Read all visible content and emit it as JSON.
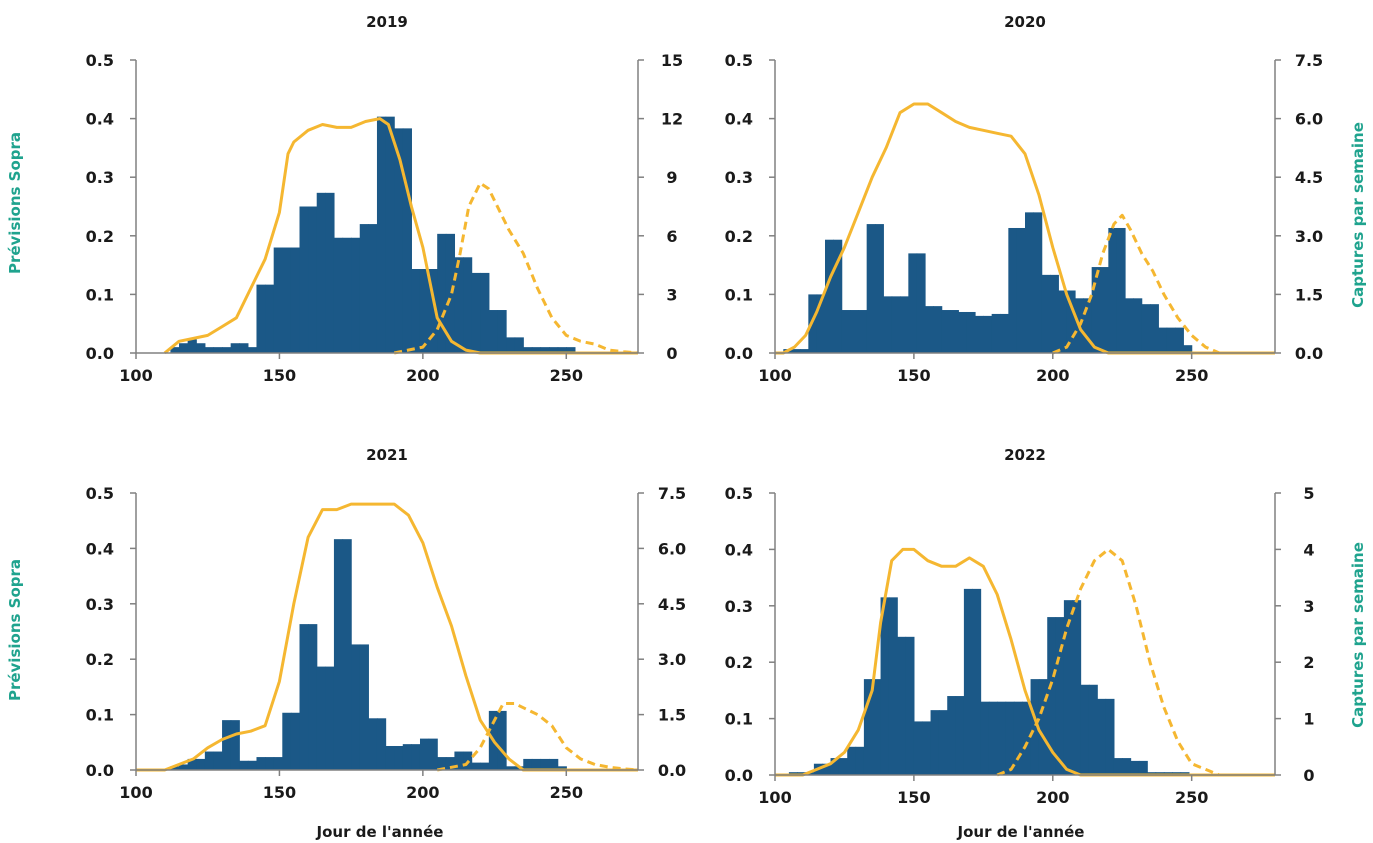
{
  "colors": {
    "bars": "#1b5887",
    "forecast": "#f5b731",
    "frame": "#808080",
    "ylabel": "#1fa38e",
    "text": "#1a1a1a"
  },
  "labels": {
    "ylabel_left": "Prévisions Sopra",
    "ylabel_right": "Captures par semaine",
    "xlabel": "Jour de l'année"
  },
  "chart_data": [
    {
      "type": "bar",
      "title": "2019",
      "xlim": [
        100,
        275
      ],
      "xticks": [
        "100",
        "150",
        "200",
        "250"
      ],
      "ylim_left": [
        0,
        0.5
      ],
      "yticks_left": [
        "0.0",
        "0.1",
        "0.2",
        "0.3",
        "0.4",
        "0.5"
      ],
      "ylim_right": [
        0,
        15
      ],
      "yticks_right": [
        "0",
        "3",
        "6",
        "9",
        "12",
        "15"
      ],
      "captures": {
        "name": "Captures par semaine",
        "x": [
          112,
          115,
          118,
          121,
          124,
          127,
          130,
          133,
          136,
          139,
          142,
          145,
          148,
          151,
          154,
          157,
          160,
          163,
          166,
          169,
          172,
          175,
          178,
          181,
          184,
          187,
          190,
          193,
          196,
          199,
          202,
          205,
          208,
          211,
          214,
          217,
          220,
          223,
          226,
          229,
          232,
          235,
          238,
          241,
          244,
          247,
          250
        ],
        "values": [
          0.3,
          0.5,
          0.7,
          0.5,
          0.3,
          0.3,
          0.3,
          0.5,
          0.5,
          0.3,
          3.5,
          3.5,
          5.4,
          5.4,
          5.4,
          7.5,
          7.5,
          8.2,
          8.2,
          5.9,
          5.9,
          5.9,
          6.6,
          6.6,
          12.1,
          12.1,
          11.5,
          11.5,
          4.3,
          4.3,
          4.3,
          6.1,
          6.1,
          4.9,
          4.9,
          4.1,
          4.1,
          2.2,
          2.2,
          0.8,
          0.8,
          0.3,
          0.3,
          0.3,
          0.3,
          0.3,
          0.3
        ]
      },
      "forecast_solid": {
        "name": "Prévisions Sopra",
        "x": [
          110,
          115,
          120,
          125,
          130,
          135,
          140,
          145,
          150,
          153,
          155,
          160,
          165,
          170,
          175,
          180,
          185,
          188,
          192,
          196,
          200,
          205,
          210,
          215,
          220,
          275
        ],
        "values": [
          0,
          0.02,
          0.025,
          0.03,
          0.045,
          0.06,
          0.11,
          0.16,
          0.24,
          0.34,
          0.36,
          0.38,
          0.39,
          0.385,
          0.385,
          0.395,
          0.4,
          0.39,
          0.33,
          0.25,
          0.18,
          0.06,
          0.02,
          0.005,
          0,
          0
        ]
      },
      "forecast_dashed": {
        "name": "Prévisions Sopra",
        "x": [
          190,
          200,
          205,
          210,
          213,
          216,
          220,
          223,
          227,
          230,
          235,
          240,
          245,
          250,
          255,
          260,
          265,
          270,
          275
        ],
        "values": [
          0,
          0.01,
          0.04,
          0.1,
          0.17,
          0.25,
          0.29,
          0.28,
          0.24,
          0.21,
          0.17,
          0.11,
          0.06,
          0.03,
          0.02,
          0.015,
          0.005,
          0.002,
          0
        ]
      }
    },
    {
      "type": "bar",
      "title": "2020",
      "xlim": [
        100,
        280
      ],
      "xticks": [
        "100",
        "150",
        "200",
        "250"
      ],
      "ylim_left": [
        0,
        0.5
      ],
      "yticks_left": [
        "0.0",
        "0.1",
        "0.2",
        "0.3",
        "0.4",
        "0.5"
      ],
      "ylim_right": [
        0,
        7.5
      ],
      "yticks_right": [
        "0.0",
        "1.5",
        "3.0",
        "4.5",
        "6.0",
        "7.5"
      ],
      "captures": {
        "name": "Captures par semaine",
        "x": [
          103,
          106,
          109,
          112,
          115,
          118,
          121,
          124,
          127,
          130,
          133,
          136,
          139,
          142,
          145,
          148,
          151,
          154,
          157,
          160,
          163,
          166,
          169,
          172,
          175,
          178,
          181,
          184,
          187,
          190,
          193,
          196,
          199,
          202,
          205,
          208,
          211,
          214,
          217,
          220,
          223,
          226,
          229,
          232,
          235,
          238,
          241,
          244,
          247
        ],
        "values": [
          0.1,
          0.1,
          0.1,
          1.5,
          1.5,
          2.9,
          2.9,
          1.1,
          1.1,
          1.1,
          3.3,
          3.3,
          1.45,
          1.45,
          1.45,
          2.55,
          2.55,
          1.2,
          1.2,
          1.1,
          1.1,
          1.05,
          1.05,
          0.95,
          0.95,
          1.0,
          1.0,
          3.2,
          3.2,
          3.6,
          3.6,
          2.0,
          2.0,
          1.6,
          1.6,
          1.4,
          1.4,
          2.2,
          2.2,
          3.2,
          3.2,
          1.4,
          1.4,
          1.25,
          1.25,
          0.65,
          0.65,
          0.65,
          0.2
        ]
      },
      "forecast_solid": {
        "name": "Prévisions Sopra",
        "x": [
          100,
          103,
          107,
          111,
          115,
          120,
          125,
          130,
          135,
          140,
          145,
          150,
          155,
          160,
          165,
          170,
          175,
          180,
          185,
          190,
          195,
          200,
          205,
          210,
          215,
          220,
          280
        ],
        "values": [
          0,
          0,
          0.01,
          0.03,
          0.07,
          0.13,
          0.18,
          0.24,
          0.3,
          0.35,
          0.41,
          0.425,
          0.425,
          0.41,
          0.395,
          0.385,
          0.38,
          0.375,
          0.37,
          0.34,
          0.27,
          0.18,
          0.1,
          0.04,
          0.01,
          0,
          0
        ]
      },
      "forecast_dashed": {
        "name": "Prévisions Sopra",
        "x": [
          200,
          205,
          210,
          214,
          218,
          222,
          225,
          228,
          232,
          236,
          240,
          245,
          250,
          255,
          260,
          280
        ],
        "values": [
          0,
          0.01,
          0.05,
          0.1,
          0.17,
          0.22,
          0.235,
          0.21,
          0.17,
          0.14,
          0.1,
          0.06,
          0.03,
          0.01,
          0,
          0
        ]
      }
    },
    {
      "type": "bar",
      "title": "2021",
      "xlim": [
        100,
        275
      ],
      "xticks": [
        "100",
        "150",
        "200",
        "250"
      ],
      "ylim_left": [
        0,
        0.5
      ],
      "yticks_left": [
        "0.0",
        "0.1",
        "0.2",
        "0.3",
        "0.4",
        "0.5"
      ],
      "ylim_right": [
        0,
        7.5
      ],
      "yticks_right": [
        "0.0",
        "1.5",
        "3.0",
        "4.5",
        "6.0",
        "7.5"
      ],
      "captures": {
        "name": "Captures par semaine",
        "x": [
          112,
          115,
          118,
          121,
          124,
          127,
          130,
          133,
          136,
          139,
          142,
          145,
          148,
          151,
          154,
          157,
          160,
          163,
          166,
          169,
          172,
          175,
          178,
          181,
          184,
          187,
          190,
          193,
          196,
          199,
          202,
          205,
          208,
          211,
          214,
          217,
          220,
          223,
          226,
          229,
          232,
          235,
          238,
          241,
          244,
          247
        ],
        "values": [
          0.1,
          0.15,
          0.3,
          0.3,
          0.5,
          0.5,
          1.35,
          1.35,
          0.25,
          0.25,
          0.35,
          0.35,
          0.35,
          1.55,
          1.55,
          3.95,
          3.95,
          2.8,
          2.8,
          6.25,
          6.25,
          3.4,
          3.4,
          1.4,
          1.4,
          0.65,
          0.65,
          0.7,
          0.7,
          0.85,
          0.85,
          0.35,
          0.35,
          0.5,
          0.5,
          0.2,
          0.2,
          1.6,
          1.6,
          0.1,
          0.1,
          0.3,
          0.3,
          0.3,
          0.3,
          0.1
        ]
      },
      "forecast_solid": {
        "name": "Prévisions Sopra",
        "x": [
          100,
          110,
          120,
          125,
          130,
          135,
          140,
          145,
          150,
          155,
          160,
          165,
          170,
          175,
          180,
          185,
          190,
          195,
          200,
          205,
          210,
          215,
          220,
          225,
          230,
          235,
          275
        ],
        "values": [
          0,
          0,
          0.02,
          0.04,
          0.055,
          0.065,
          0.07,
          0.08,
          0.16,
          0.3,
          0.42,
          0.47,
          0.47,
          0.48,
          0.48,
          0.48,
          0.48,
          0.46,
          0.41,
          0.33,
          0.26,
          0.17,
          0.09,
          0.05,
          0.02,
          0,
          0
        ]
      },
      "forecast_dashed": {
        "name": "Prévisions Sopra",
        "x": [
          205,
          215,
          220,
          225,
          228,
          232,
          236,
          240,
          245,
          250,
          255,
          260,
          265,
          270,
          275
        ],
        "values": [
          0,
          0.01,
          0.04,
          0.09,
          0.12,
          0.12,
          0.11,
          0.1,
          0.08,
          0.04,
          0.02,
          0.01,
          0.005,
          0.002,
          0
        ]
      }
    },
    {
      "type": "bar",
      "title": "2022",
      "xlim": [
        100,
        280
      ],
      "xticks": [
        "100",
        "150",
        "200",
        "250"
      ],
      "ylim_left": [
        0,
        0.5
      ],
      "yticks_left": [
        "0.0",
        "0.1",
        "0.2",
        "0.3",
        "0.4",
        "0.5"
      ],
      "ylim_right": [
        0,
        5
      ],
      "yticks_right": [
        "0",
        "1",
        "2",
        "3",
        "4",
        "5"
      ],
      "captures": {
        "name": "Captures par semaine",
        "x": [
          105,
          108,
          111,
          114,
          117,
          120,
          123,
          126,
          129,
          132,
          135,
          138,
          141,
          144,
          147,
          150,
          153,
          156,
          159,
          162,
          165,
          168,
          171,
          174,
          177,
          180,
          183,
          186,
          189,
          192,
          195,
          198,
          201,
          204,
          207,
          210,
          213,
          216,
          219,
          222,
          225,
          228,
          231,
          234,
          237,
          240,
          243,
          246
        ],
        "values": [
          0.05,
          0.05,
          0.05,
          0.2,
          0.2,
          0.3,
          0.3,
          0.5,
          0.5,
          1.7,
          1.7,
          3.15,
          3.15,
          2.45,
          2.45,
          0.95,
          0.95,
          1.15,
          1.15,
          1.4,
          1.4,
          3.3,
          3.3,
          1.3,
          1.3,
          1.3,
          1.3,
          1.3,
          1.3,
          1.7,
          1.7,
          2.8,
          2.8,
          3.1,
          3.1,
          1.6,
          1.6,
          1.35,
          1.35,
          0.3,
          0.3,
          0.25,
          0.25,
          0.05,
          0.05,
          0.05,
          0.05,
          0.05
        ]
      },
      "forecast_solid": {
        "name": "Prévisions Sopra",
        "x": [
          100,
          110,
          115,
          120,
          125,
          130,
          135,
          138,
          142,
          146,
          150,
          155,
          160,
          165,
          170,
          175,
          180,
          185,
          190,
          195,
          200,
          205,
          210,
          280
        ],
        "values": [
          0,
          0,
          0.01,
          0.02,
          0.04,
          0.08,
          0.15,
          0.27,
          0.38,
          0.4,
          0.4,
          0.38,
          0.37,
          0.37,
          0.385,
          0.37,
          0.32,
          0.24,
          0.15,
          0.08,
          0.04,
          0.01,
          0,
          0
        ]
      },
      "forecast_dashed": {
        "name": "Prévisions Sopra",
        "x": [
          180,
          185,
          190,
          195,
          200,
          205,
          210,
          215,
          220,
          225,
          230,
          235,
          240,
          245,
          250,
          255,
          260,
          280
        ],
        "values": [
          0,
          0.01,
          0.05,
          0.1,
          0.17,
          0.26,
          0.33,
          0.38,
          0.4,
          0.38,
          0.3,
          0.2,
          0.12,
          0.06,
          0.02,
          0.01,
          0,
          0
        ]
      }
    }
  ]
}
